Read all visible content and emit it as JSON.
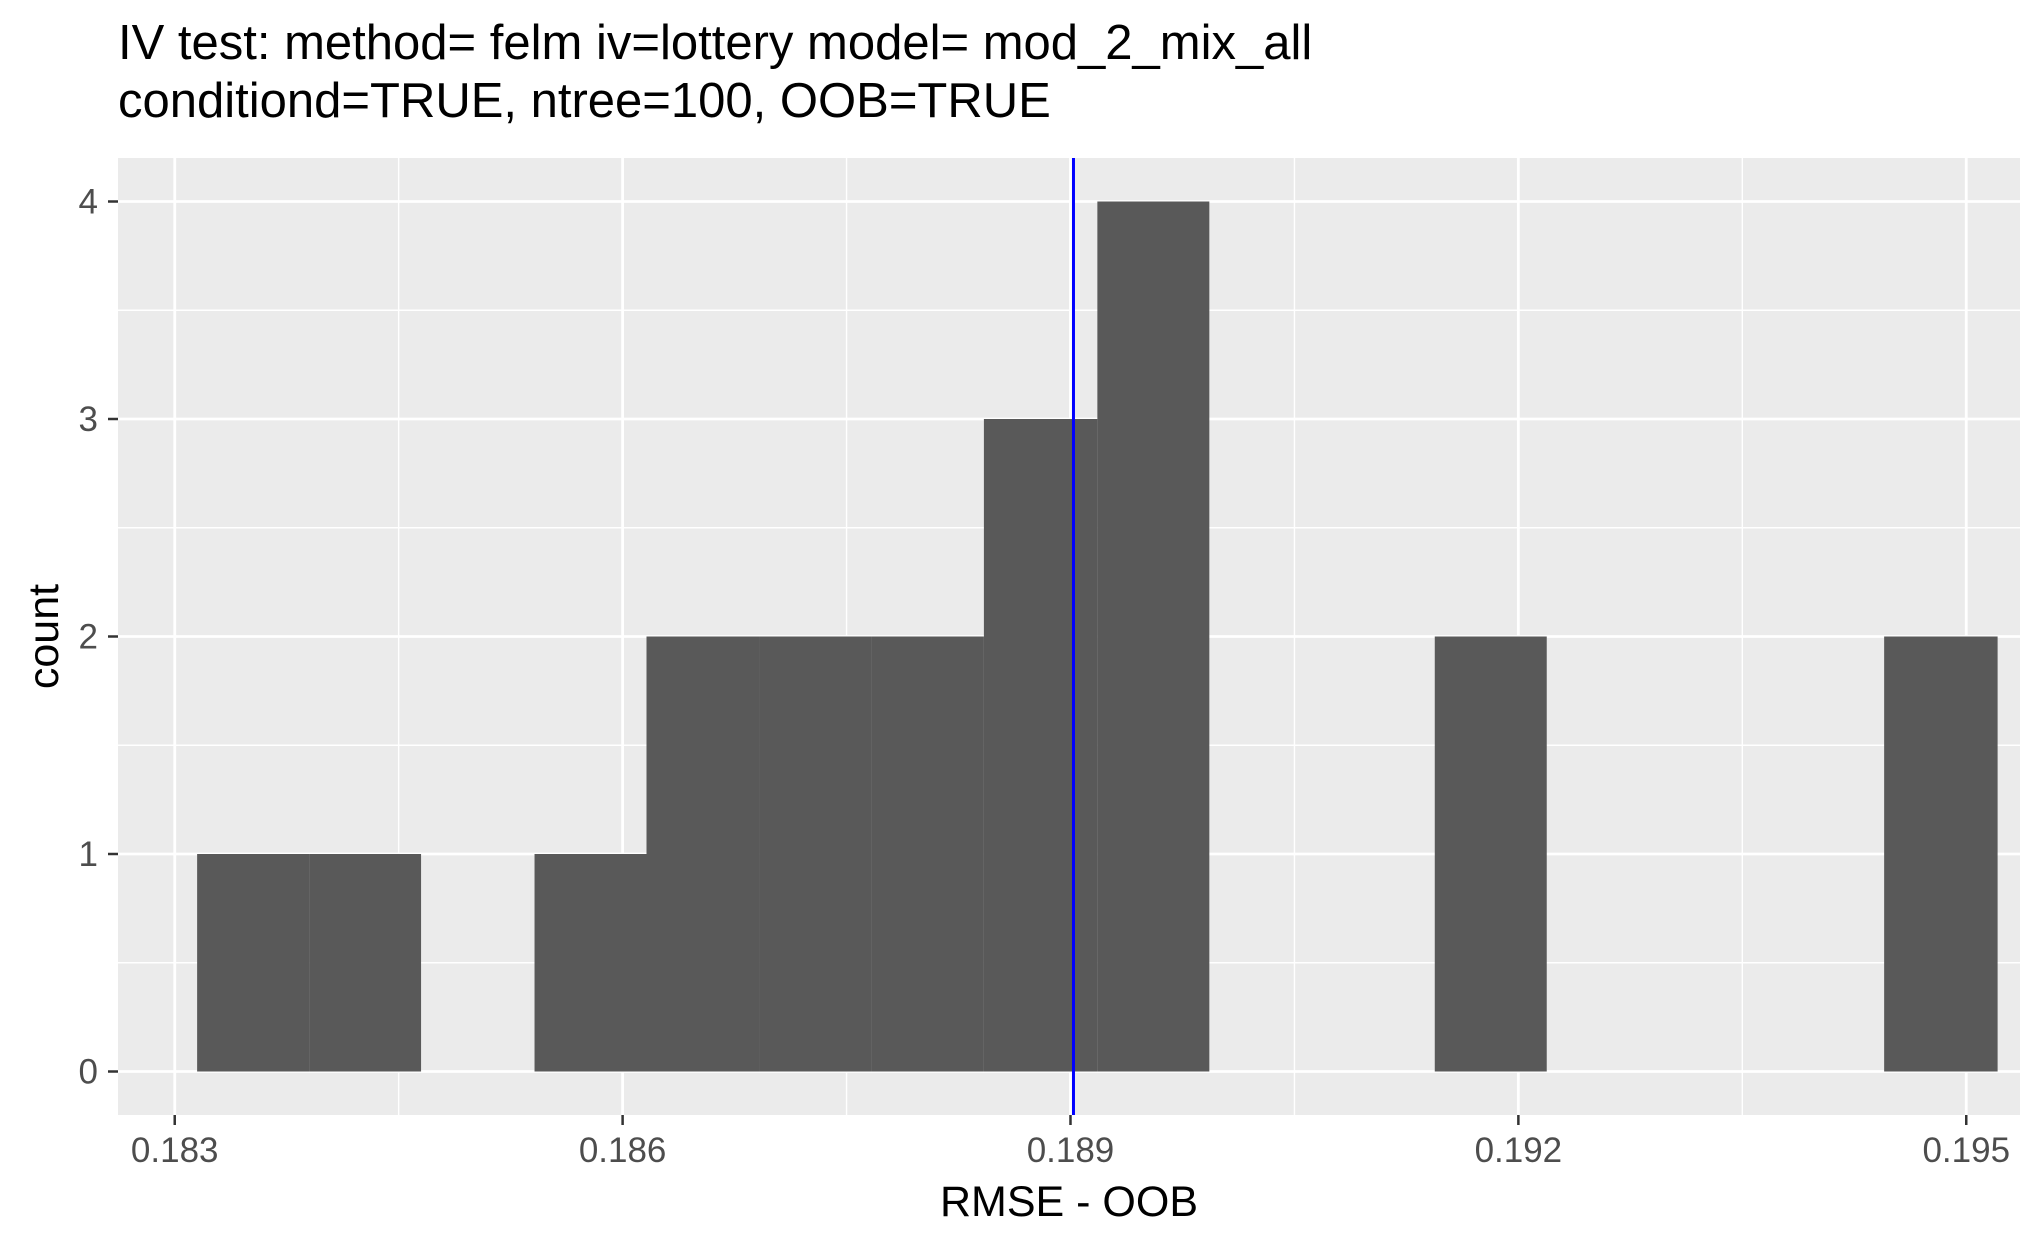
{
  "chart_data": {
    "type": "bar",
    "title": "IV test: method= felm iv=lottery model= mod_2_mix_all",
    "subtitle": "conditiond=TRUE, ntree=100, OOB=TRUE",
    "xlabel": "RMSE - OOB",
    "ylabel": "count",
    "xlim": [
      0.18262,
      0.19536
    ],
    "ylim": [
      -0.2,
      4.2
    ],
    "x_ticks": [
      0.183,
      0.186,
      0.189,
      0.192,
      0.195
    ],
    "x_tick_labels": [
      "0.183",
      "0.186",
      "0.189",
      "0.192",
      "0.195"
    ],
    "y_ticks": [
      0,
      1,
      2,
      3,
      4
    ],
    "y_tick_labels": [
      "0",
      "1",
      "2",
      "3",
      "4"
    ],
    "bins": [
      {
        "x0": 0.18315,
        "x1": 0.1839,
        "count": 1
      },
      {
        "x0": 0.1839,
        "x1": 0.18465,
        "count": 1
      },
      {
        "x0": 0.18541,
        "x1": 0.18616,
        "count": 1
      },
      {
        "x0": 0.18616,
        "x1": 0.18692,
        "count": 2
      },
      {
        "x0": 0.18692,
        "x1": 0.18767,
        "count": 2
      },
      {
        "x0": 0.18767,
        "x1": 0.18842,
        "count": 2
      },
      {
        "x0": 0.18842,
        "x1": 0.18918,
        "count": 3
      },
      {
        "x0": 0.18918,
        "x1": 0.18993,
        "count": 4
      },
      {
        "x0": 0.19144,
        "x1": 0.19219,
        "count": 2
      },
      {
        "x0": 0.19445,
        "x1": 0.19521,
        "count": 2
      }
    ],
    "vline": {
      "x": 0.18902,
      "color": "#0000ff"
    },
    "colors": {
      "panel": "#ebebeb",
      "grid": "#ffffff",
      "bar": "#595959"
    },
    "grid": true,
    "legend": "none"
  }
}
